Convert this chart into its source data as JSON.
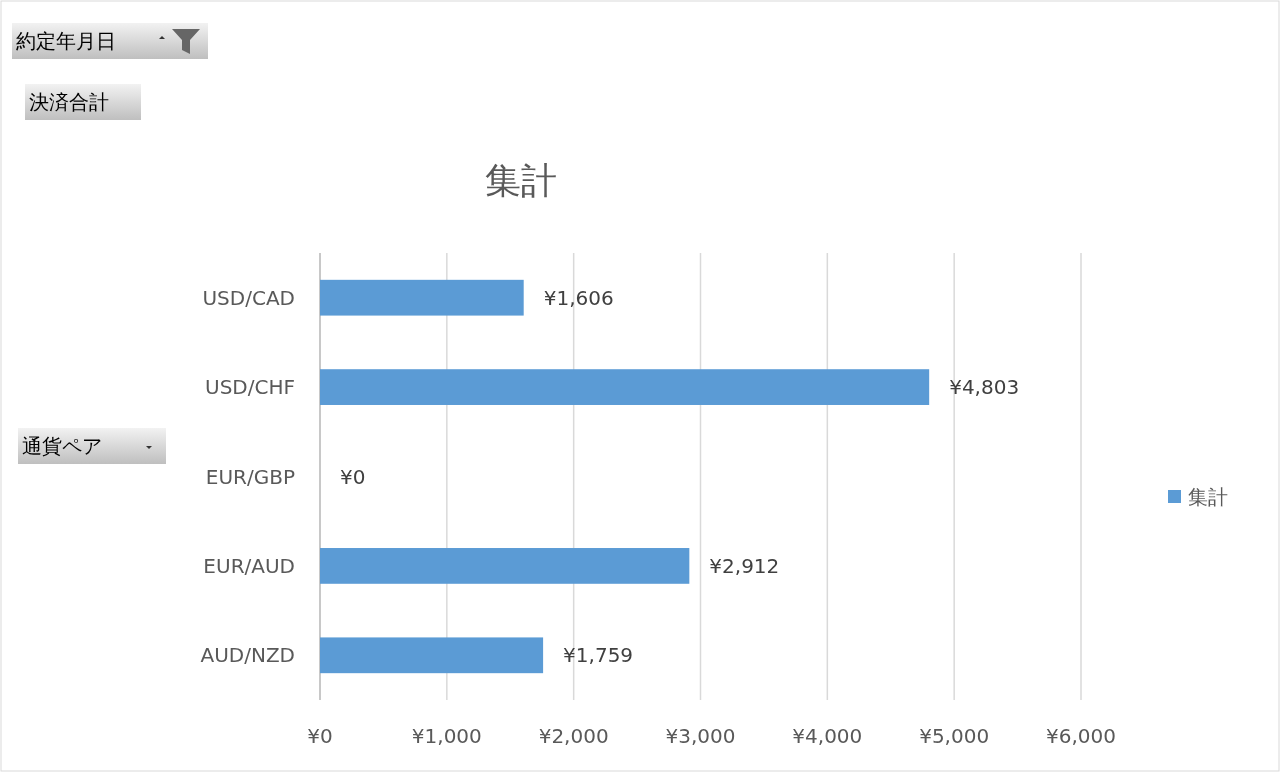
{
  "chart_data": {
    "type": "bar",
    "orientation": "horizontal",
    "title": "集計",
    "categories": [
      "USD/CAD",
      "USD/CHF",
      "EUR/GBP",
      "EUR/AUD",
      "AUD/NZD"
    ],
    "series": [
      {
        "name": "集計",
        "color": "#5b9bd5",
        "values": [
          1606,
          4803,
          0,
          2912,
          1759
        ],
        "value_labels": [
          "¥1,606",
          "¥4,803",
          "¥0",
          "¥2,912",
          "¥1,759"
        ]
      }
    ],
    "xlim": [
      0,
      6000
    ],
    "xticks": [
      {
        "value": 0,
        "label": "¥0"
      },
      {
        "value": 1000,
        "label": "¥1,000"
      },
      {
        "value": 2000,
        "label": "¥2,000"
      },
      {
        "value": 3000,
        "label": "¥3,000"
      },
      {
        "value": 4000,
        "label": "¥4,000"
      },
      {
        "value": 5000,
        "label": "¥5,000"
      },
      {
        "value": 6000,
        "label": "¥6,000"
      }
    ],
    "grid": "x",
    "legend": "right",
    "annotations": [
      "約定年月日",
      "決済合計",
      "通貨ペア"
    ]
  }
}
